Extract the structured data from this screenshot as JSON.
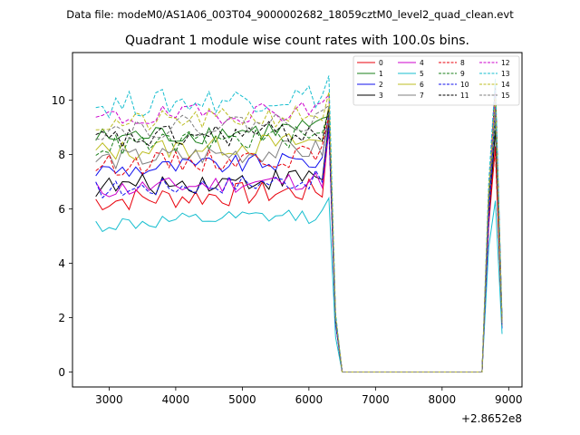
{
  "chart_data": {
    "type": "line",
    "suptitle": "Data file: modeM0/AS1A06_003T04_9000002682_18059cztM0_level2_quad_clean.evt",
    "title": "Quadrant 1 module wise count rates with 100.0s bins.",
    "xlabel": "",
    "ylabel": "",
    "offset_text": "+2.8652e8",
    "xlim": [
      2450,
      9200
    ],
    "ylim": [
      -0.55,
      11.75
    ],
    "xticks": [
      3000,
      4000,
      5000,
      6000,
      7000,
      8000,
      9000
    ],
    "yticks": [
      0,
      2,
      4,
      6,
      8,
      10
    ],
    "legend_location": "upper right",
    "x_start": 2800,
    "x_step": 100,
    "gap_after_x": 6400,
    "gap_start_x": 6500,
    "gap_end_x": 8500,
    "tail_x": [
      8600,
      8700,
      8800,
      8900
    ],
    "series": [
      {
        "name": "0",
        "color": "#e8000b",
        "dash": "solid",
        "base": 6.3,
        "amp": 0.45,
        "peak": 9.0,
        "tail": [
          0,
          5.4,
          8.3,
          1.7
        ]
      },
      {
        "name": "1",
        "color": "#1a7f1a",
        "dash": "solid",
        "base": 8.6,
        "amp": 0.4,
        "peak": 9.4,
        "tail": [
          0,
          6.4,
          10.4,
          1.9
        ]
      },
      {
        "name": "2",
        "color": "#1111ee",
        "dash": "solid",
        "base": 7.4,
        "amp": 0.35,
        "peak": 9.5,
        "tail": [
          0,
          5.9,
          9.9,
          1.6
        ]
      },
      {
        "name": "3",
        "color": "#000000",
        "dash": "solid",
        "base": 6.8,
        "amp": 0.4,
        "peak": 9.2,
        "tail": [
          0,
          5.6,
          8.9,
          1.7
        ]
      },
      {
        "name": "4",
        "color": "#cc00cc",
        "dash": "solid",
        "base": 6.7,
        "amp": 0.35,
        "peak": 8.9,
        "tail": [
          0,
          5.5,
          10.3,
          1.8
        ]
      },
      {
        "name": "5",
        "color": "#17becf",
        "dash": "solid",
        "base": 5.4,
        "amp": 0.3,
        "peak": 6.4,
        "tail": [
          0,
          4.6,
          6.3,
          1.4
        ]
      },
      {
        "name": "6",
        "color": "#bcbd22",
        "dash": "solid",
        "base": 8.1,
        "amp": 0.4,
        "peak": 9.8,
        "tail": [
          0,
          6.1,
          10.1,
          1.7
        ]
      },
      {
        "name": "7",
        "color": "#7f7f7f",
        "dash": "solid",
        "base": 7.8,
        "amp": 0.4,
        "peak": 9.3,
        "tail": [
          0,
          5.9,
          9.6,
          1.7
        ]
      },
      {
        "name": "8",
        "color": "#e8000b",
        "dash": "dashed",
        "base": 7.6,
        "amp": 0.4,
        "peak": 9.4,
        "tail": [
          0,
          6.0,
          8.1,
          1.8
        ]
      },
      {
        "name": "9",
        "color": "#1a7f1a",
        "dash": "dashed",
        "base": 8.3,
        "amp": 0.4,
        "peak": 9.6,
        "tail": [
          0,
          6.3,
          9.2,
          1.8
        ]
      },
      {
        "name": "10",
        "color": "#1111ee",
        "dash": "dashed",
        "base": 6.7,
        "amp": 0.35,
        "peak": 9.0,
        "tail": [
          0,
          5.7,
          9.8,
          1.7
        ]
      },
      {
        "name": "11",
        "color": "#000000",
        "dash": "dashed",
        "base": 8.5,
        "amp": 0.45,
        "peak": 9.7,
        "tail": [
          0,
          6.4,
          10.6,
          1.8
        ]
      },
      {
        "name": "12",
        "color": "#cc00cc",
        "dash": "dashed",
        "base": 9.3,
        "amp": 0.4,
        "peak": 10.2,
        "tail": [
          0,
          6.6,
          10.4,
          1.9
        ]
      },
      {
        "name": "13",
        "color": "#17becf",
        "dash": "dashed",
        "base": 9.8,
        "amp": 0.5,
        "peak": 10.9,
        "tail": [
          0,
          7.0,
          10.8,
          2.0
        ]
      },
      {
        "name": "14",
        "color": "#bcbd22",
        "dash": "dashed",
        "base": 9.1,
        "amp": 0.4,
        "peak": 10.3,
        "tail": [
          0,
          6.7,
          10.1,
          1.8
        ]
      },
      {
        "name": "15",
        "color": "#7f7f7f",
        "dash": "dashed",
        "base": 8.9,
        "amp": 0.4,
        "peak": 9.8,
        "tail": [
          0,
          6.5,
          9.6,
          1.8
        ]
      }
    ]
  }
}
